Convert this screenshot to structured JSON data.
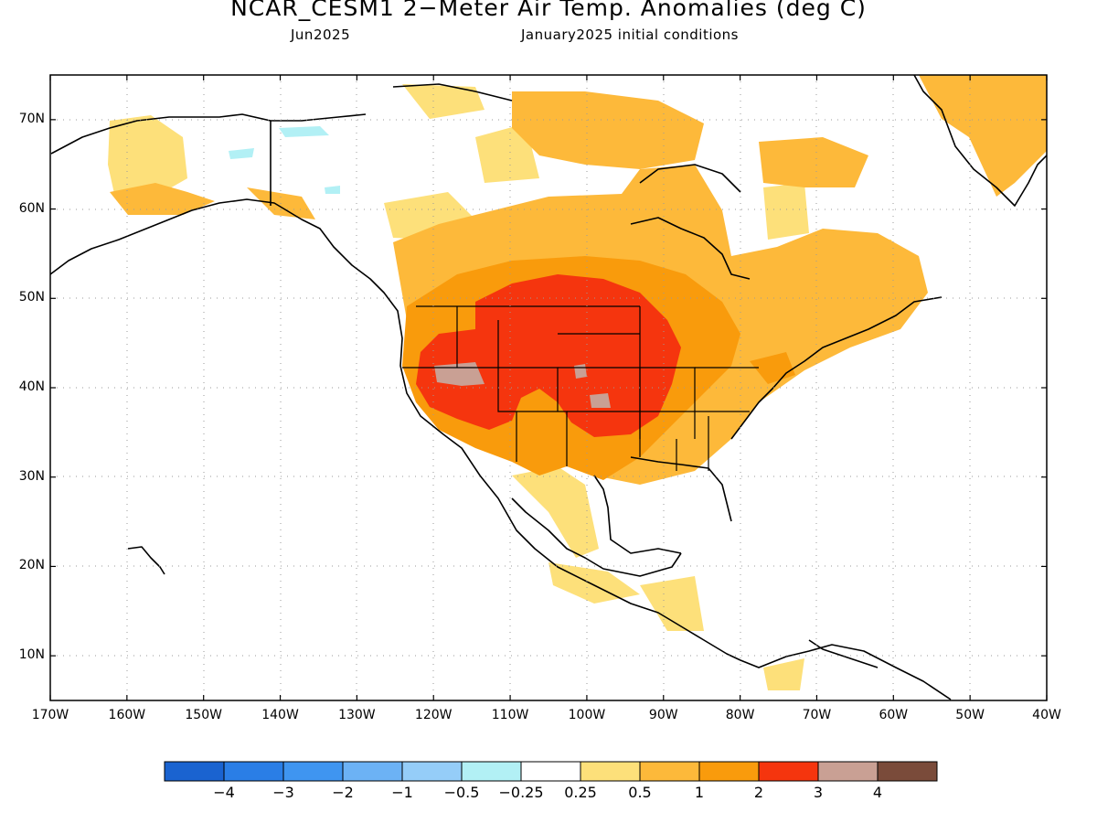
{
  "title": "NCAR_CESM1 2−Meter Air Temp. Anomalies (deg C)",
  "subtitle_left": "Jun2025",
  "subtitle_right": "January2025 initial conditions",
  "map_extent": {
    "lon": [
      -170,
      -40
    ],
    "lat": [
      5,
      75
    ]
  },
  "lat_labels": [
    "70N",
    "60N",
    "50N",
    "40N",
    "30N",
    "20N",
    "10N"
  ],
  "lat_values": [
    70,
    60,
    50,
    40,
    30,
    20,
    10
  ],
  "lon_labels": [
    "170W",
    "160W",
    "150W",
    "140W",
    "130W",
    "120W",
    "110W",
    "100W",
    "90W",
    "80W",
    "70W",
    "60W",
    "50W",
    "40W"
  ],
  "lon_values": [
    -170,
    -160,
    -150,
    -140,
    -130,
    -120,
    -110,
    -100,
    -90,
    -80,
    -70,
    -60,
    -50,
    -40
  ],
  "colorbar": {
    "colors": [
      "#1a63d0",
      "#2a7ee6",
      "#3f95f0",
      "#6cb2f5",
      "#95cdf8",
      "#b2f0f5",
      "#ffffff",
      "#fde07a",
      "#fdb93a",
      "#f99b0c",
      "#f5350e",
      "#c9a094",
      "#7a4b3a"
    ],
    "labels": [
      "−4",
      "−3",
      "−2",
      "−1",
      "−0.5",
      "−0.25",
      "0.25",
      "0.5",
      "1",
      "2",
      "3",
      "4"
    ]
  },
  "anomaly_regions": [
    {
      "level": "0.5 to 1",
      "color": "#fdb93a",
      "area": "Canada, Alaska coast and Greenland"
    },
    {
      "level": "1 to 2",
      "color": "#f99b0c",
      "area": "western and central United States"
    },
    {
      "level": "2 to 3",
      "color": "#f5350e",
      "area": "northern Plains and Great Basin"
    },
    {
      "level": "3 to 4",
      "color": "#c9a094",
      "area": "Nevada and Kansas"
    },
    {
      "level": "-0.5 to -0.25",
      "color": "#b2f0f5",
      "area": "northern Alaska"
    }
  ]
}
